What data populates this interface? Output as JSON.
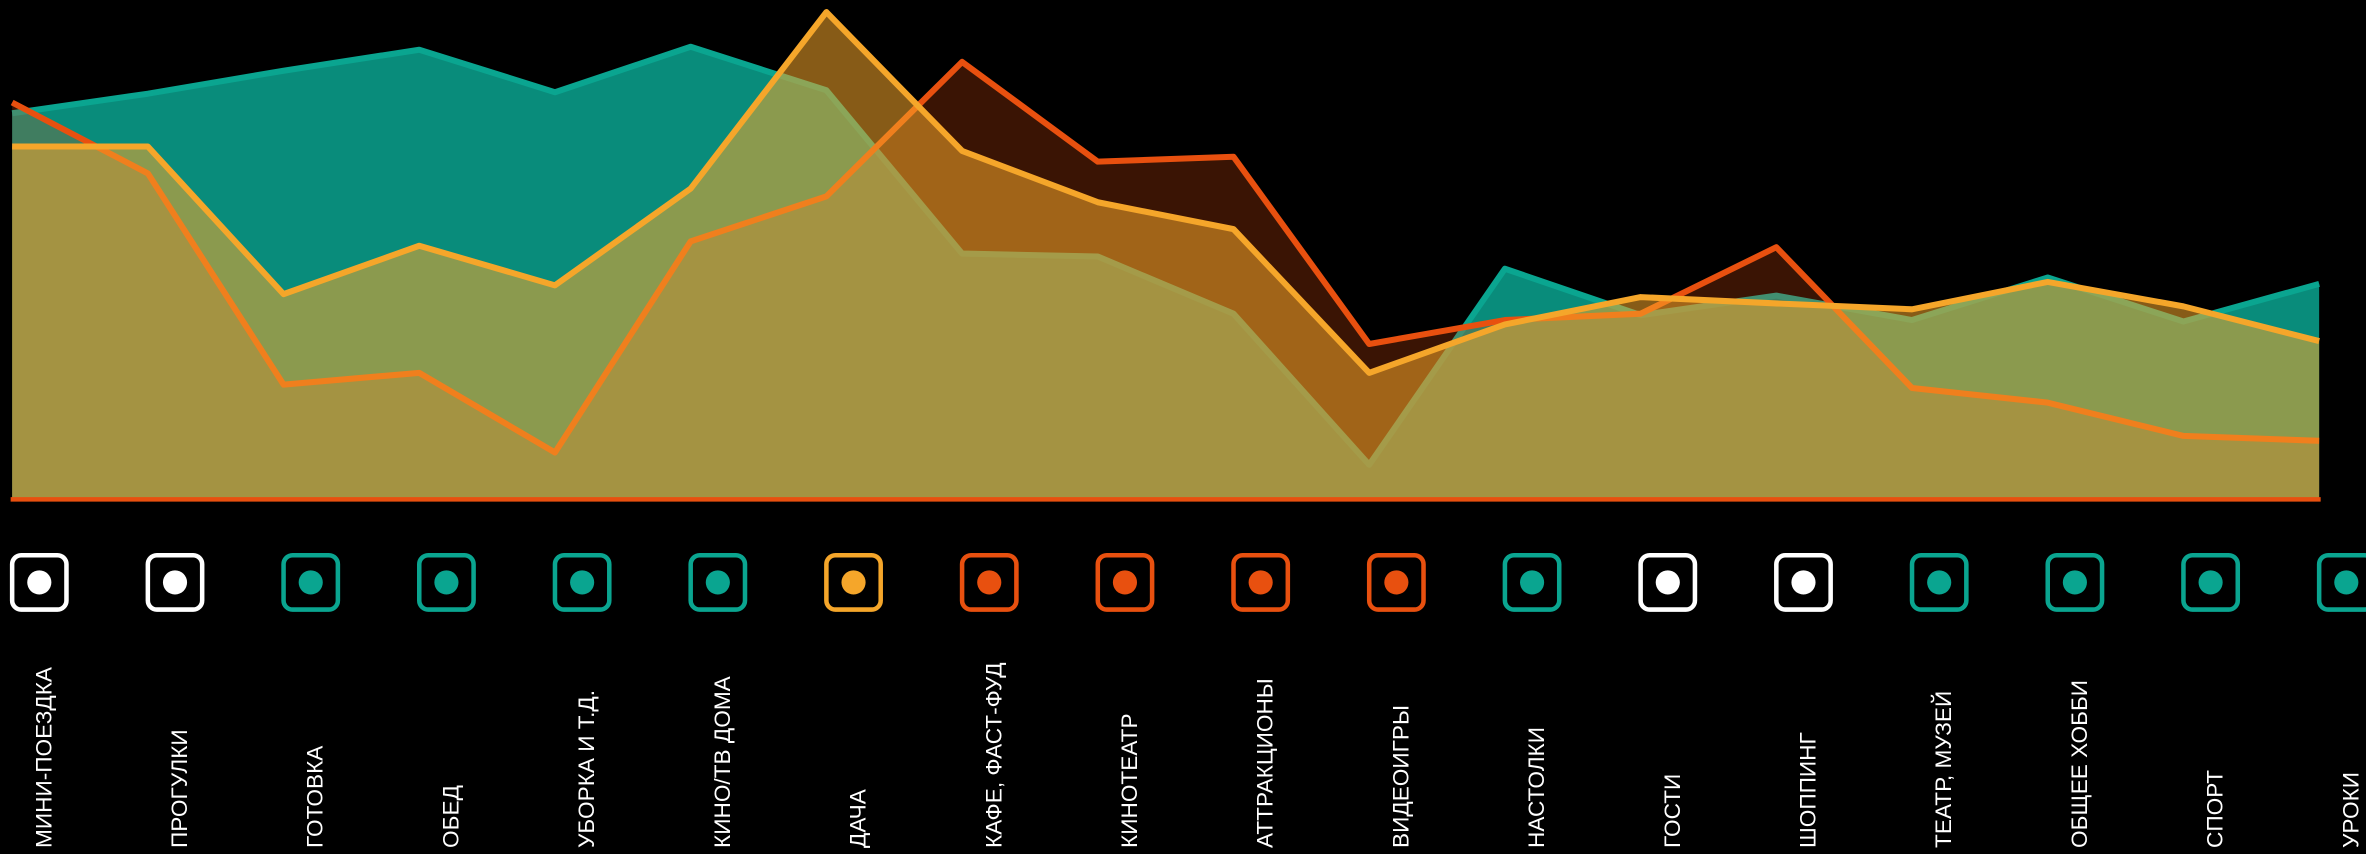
{
  "chart_data": {
    "type": "area",
    "categories": [
      "МИНИ-ПОЕЗДКА",
      "ПРОГУЛКИ",
      "ГОТОВКА",
      "ОБЕД",
      "УБОРКА И Т.Д.",
      "КИНО/ТВ ДОМА",
      "ДАЧА",
      "КАФЕ, ФАСТ-ФУД",
      "КИНОТЕАТР",
      "АТТРАКЦИОНЫ",
      "ВИДЕОИГРЫ",
      "НАСТОЛКИ",
      "ГОСТИ",
      "ШОППИНГ",
      "ТЕАТР, МУЗЕЙ",
      "ОБЩЕЕ ХОББИ",
      "СПОРТ",
      "УРОКИ"
    ],
    "series": [
      {
        "color": "#0aa590",
        "values": [
          79.3,
          83.3,
          88.0,
          92.3,
          83.6,
          92.9,
          84.0,
          50.6,
          50.0,
          38.3,
          7.4,
          47.5,
          38.0,
          42.0,
          37.0,
          45.7,
          36.7,
          44.4
        ]
      },
      {
        "color": "#e8500f",
        "values": [
          81.5,
          67.0,
          23.8,
          26.2,
          9.9,
          53.1,
          62.3,
          89.8,
          69.4,
          70.4,
          32.1,
          37.0,
          38.3,
          51.9,
          23.1,
          20.1,
          13.3,
          12.3
        ]
      },
      {
        "color": "#f5a62a",
        "values": [
          72.5,
          72.5,
          42.3,
          52.2,
          44.1,
          63.9,
          100,
          71.6,
          61.1,
          55.6,
          26.2,
          36.1,
          41.7,
          40.4,
          39.2,
          44.8,
          39.8,
          32.7
        ]
      }
    ],
    "ylim": [
      0,
      100
    ]
  }
}
